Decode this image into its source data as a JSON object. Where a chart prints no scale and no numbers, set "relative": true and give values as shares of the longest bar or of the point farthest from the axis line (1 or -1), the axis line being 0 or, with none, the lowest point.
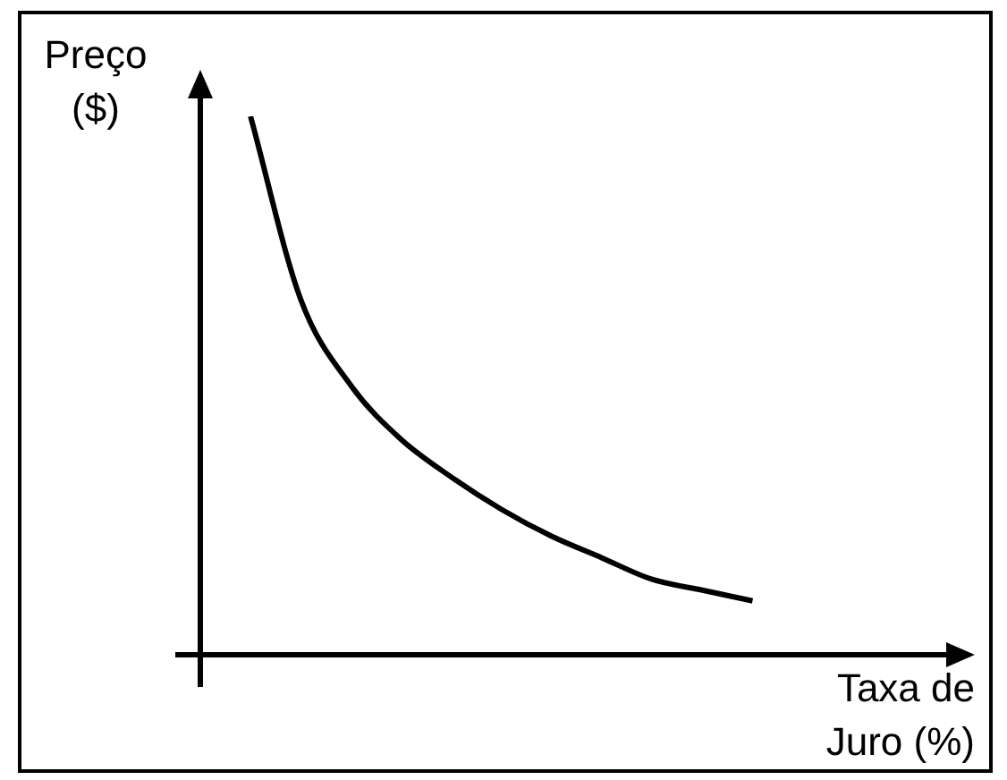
{
  "chart_data": {
    "type": "line",
    "xlabel": "Taxa de Juro (%)",
    "ylabel": "Preço ($)",
    "relative": true,
    "tick_labels": false,
    "marker": "none",
    "line_style": "solid",
    "categories": [
      null,
      null,
      null,
      null,
      null,
      null,
      null,
      null,
      null,
      null,
      null,
      null,
      null,
      null,
      null,
      null
    ],
    "series": [
      {
        "color": "#000000",
        "values": [
          null,
          1,
          0.66,
          0.5,
          0.4,
          0.33,
          0.27,
          0.22,
          0.18,
          0.14,
          0.12,
          0.1,
          null,
          null,
          null,
          null
        ]
      }
    ]
  }
}
